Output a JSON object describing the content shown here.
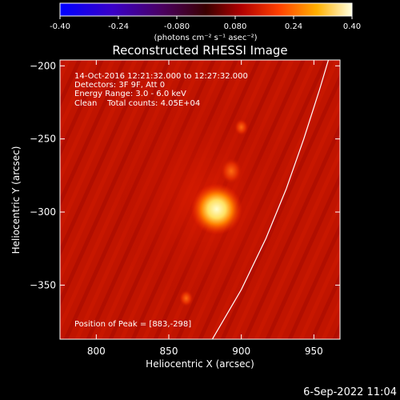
{
  "colorbar": {
    "ticks": [
      "-0.40",
      "-0.24",
      "-0.080",
      "0.080",
      "0.24",
      "0.40"
    ],
    "tick_values": [
      -0.4,
      -0.24,
      -0.08,
      0.08,
      0.24,
      0.4
    ],
    "range": [
      -0.4,
      0.4
    ],
    "unit_label": "(photons cm⁻² s⁻¹ asec⁻²)"
  },
  "chart_data": {
    "type": "heatmap",
    "title": "Reconstructed RHESSI Image",
    "xlabel": "Heliocentric X (arcsec)",
    "ylabel": "Heliocentric Y (arcsec)",
    "xlim": [
      775,
      968
    ],
    "ylim": [
      -387,
      -196
    ],
    "x_ticks": [
      800,
      850,
      900,
      950
    ],
    "y_ticks": [
      -200,
      -250,
      -300,
      -350
    ],
    "x_tick_labels": [
      "800",
      "850",
      "900",
      "950"
    ],
    "y_tick_labels": [
      "−200",
      "−250",
      "−300",
      "−350"
    ],
    "peak": [
      883,
      -298
    ],
    "secondary_sources": [
      [
        893,
        -272
      ],
      [
        900,
        -242
      ],
      [
        862,
        -359
      ]
    ],
    "info_lines": [
      "14-Oct-2016 12:21:32.000 to 12:27:32.000",
      "Detectors: 3F 9F, Att 0",
      "Energy Range: 3.0 - 6.0 keV",
      "Clean    Total counts: 4.05E+04"
    ],
    "peak_label": "Position of Peak = [883,-298]",
    "limb_curve": [
      [
        880,
        -387
      ],
      [
        900,
        -353
      ],
      [
        917,
        -318
      ],
      [
        931,
        -284
      ],
      [
        943,
        -250
      ],
      [
        954,
        -216
      ],
      [
        960,
        -196
      ]
    ]
  },
  "footer": {
    "date": "6-Sep-2022 11:04"
  }
}
